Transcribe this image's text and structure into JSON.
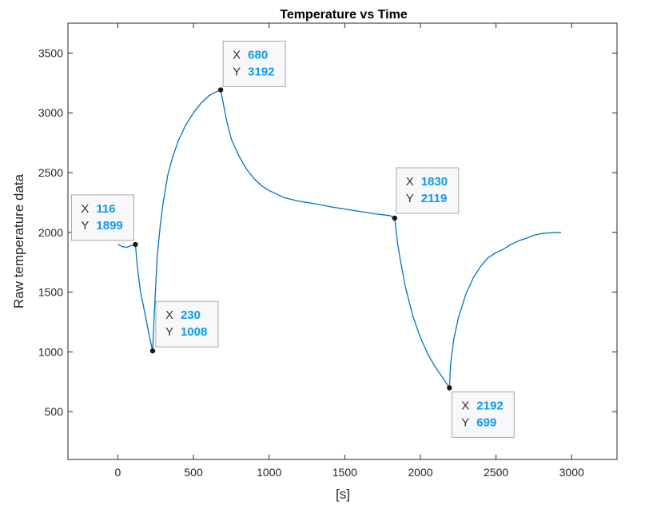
{
  "chart_data": {
    "type": "line",
    "title": "Temperature vs Time",
    "xlabel": "[s]",
    "ylabel": "Raw temperature data",
    "xlim": [
      -330,
      3300
    ],
    "ylim": [
      100,
      3750
    ],
    "xticks": [
      0,
      500,
      1000,
      1500,
      2000,
      2500,
      3000
    ],
    "yticks": [
      500,
      1000,
      1500,
      2000,
      2500,
      3000,
      3500
    ],
    "grid": false,
    "line_color": "#0072bd",
    "series": [
      {
        "x": [
          0,
          30,
          60,
          90,
          116,
          130,
          150,
          170,
          190,
          210,
          230,
          240,
          260,
          280,
          300,
          330,
          360,
          400,
          450,
          500,
          550,
          600,
          640,
          670,
          680,
          700,
          720,
          750,
          800,
          850,
          900,
          950,
          1000,
          1050,
          1100,
          1200,
          1300,
          1400,
          1500,
          1600,
          1700,
          1800,
          1830,
          1850,
          1870,
          1900,
          1950,
          2000,
          2050,
          2100,
          2150,
          2192,
          2200,
          2220,
          2250,
          2300,
          2350,
          2400,
          2450,
          2500,
          2550,
          2600,
          2650,
          2700,
          2750,
          2800,
          2850,
          2930
        ],
        "y": [
          1900,
          1880,
          1875,
          1890,
          1899,
          1700,
          1500,
          1380,
          1250,
          1120,
          1008,
          1300,
          1800,
          2050,
          2250,
          2480,
          2620,
          2770,
          2900,
          3000,
          3080,
          3140,
          3170,
          3185,
          3192,
          3060,
          2930,
          2780,
          2640,
          2530,
          2450,
          2390,
          2350,
          2320,
          2290,
          2260,
          2240,
          2215,
          2195,
          2175,
          2155,
          2140,
          2119,
          1900,
          1750,
          1550,
          1300,
          1120,
          980,
          870,
          780,
          699,
          900,
          1100,
          1280,
          1480,
          1620,
          1720,
          1790,
          1830,
          1860,
          1900,
          1930,
          1950,
          1975,
          1990,
          1995,
          2000
        ]
      }
    ],
    "datatips": [
      {
        "x_label": "X",
        "x_value": "116",
        "y_label": "Y",
        "y_value": "1899",
        "x": 116,
        "y": 1899
      },
      {
        "x_label": "X",
        "x_value": "230",
        "y_label": "Y",
        "y_value": "1008",
        "x": 230,
        "y": 1008
      },
      {
        "x_label": "X",
        "x_value": "680",
        "y_label": "Y",
        "y_value": "3192",
        "x": 680,
        "y": 3192
      },
      {
        "x_label": "X",
        "x_value": "1830",
        "y_label": "Y",
        "y_value": "2119",
        "x": 1830,
        "y": 2119
      },
      {
        "x_label": "X",
        "x_value": "2192",
        "y_label": "Y",
        "y_value": "699",
        "x": 2192,
        "y": 699
      }
    ]
  }
}
